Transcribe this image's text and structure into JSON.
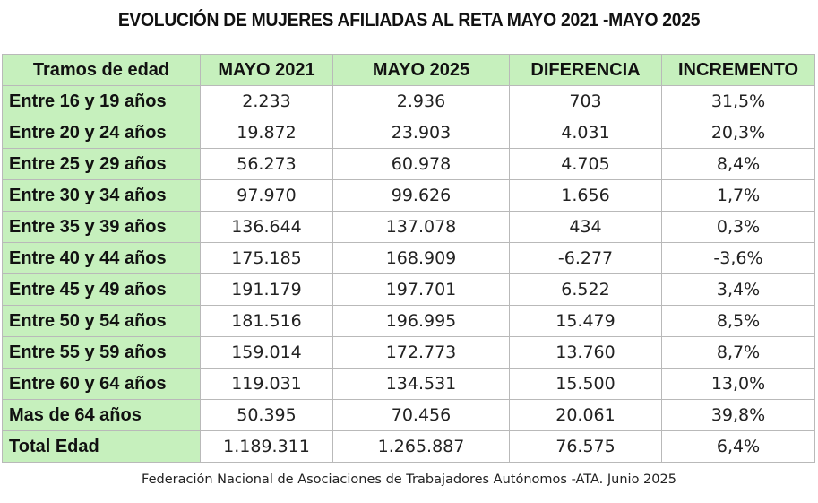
{
  "chart_data": {
    "type": "table",
    "title": "EVOLUCIÓN DE MUJERES AFILIADAS AL RETA MAYO 2021 -MAYO 2025",
    "columns": [
      "Tramos de edad",
      "MAYO 2021",
      "MAYO 2025",
      "DIFERENCIA",
      "INCREMENTO"
    ],
    "rows": [
      {
        "label": "Entre 16 y 19 años",
        "mayo_2021": "2.233",
        "mayo_2025": "2.936",
        "diferencia": "703",
        "incremento": "31,5%"
      },
      {
        "label": "Entre 20 y 24 años",
        "mayo_2021": "19.872",
        "mayo_2025": "23.903",
        "diferencia": "4.031",
        "incremento": "20,3%"
      },
      {
        "label": "Entre 25 y 29 años",
        "mayo_2021": "56.273",
        "mayo_2025": "60.978",
        "diferencia": "4.705",
        "incremento": "8,4%"
      },
      {
        "label": "Entre 30 y 34 años",
        "mayo_2021": "97.970",
        "mayo_2025": "99.626",
        "diferencia": "1.656",
        "incremento": "1,7%"
      },
      {
        "label": "Entre 35 y 39 años",
        "mayo_2021": "136.644",
        "mayo_2025": "137.078",
        "diferencia": "434",
        "incremento": "0,3%"
      },
      {
        "label": "Entre 40 y 44 años",
        "mayo_2021": "175.185",
        "mayo_2025": "168.909",
        "diferencia": "-6.277",
        "incremento": "-3,6%"
      },
      {
        "label": "Entre 45 y 49 años",
        "mayo_2021": "191.179",
        "mayo_2025": "197.701",
        "diferencia": "6.522",
        "incremento": "3,4%"
      },
      {
        "label": "Entre 50 y 54 años",
        "mayo_2021": "181.516",
        "mayo_2025": "196.995",
        "diferencia": "15.479",
        "incremento": "8,5%"
      },
      {
        "label": "Entre 55 y 59 años",
        "mayo_2021": "159.014",
        "mayo_2025": "172.773",
        "diferencia": "13.760",
        "incremento": "8,7%"
      },
      {
        "label": "Entre 60 y 64 años",
        "mayo_2021": "119.031",
        "mayo_2025": "134.531",
        "diferencia": "15.500",
        "incremento": "13,0%"
      },
      {
        "label": "Mas de 64 años",
        "mayo_2021": "50.395",
        "mayo_2025": "70.456",
        "diferencia": "20.061",
        "incremento": "39,8%"
      },
      {
        "label": "Total Edad",
        "mayo_2021": "1.189.311",
        "mayo_2025": "1.265.887",
        "diferencia": "76.575",
        "incremento": "6,4%"
      }
    ],
    "source": "Federación Nacional de Asociaciones de Trabajadores Autónomos -ATA. Junio 2025"
  },
  "colors": {
    "header_bg": "#c6f0bd",
    "label_bg": "#c6f0bd",
    "cell_bg": "#ffffff",
    "border": "#b9b9b9"
  }
}
